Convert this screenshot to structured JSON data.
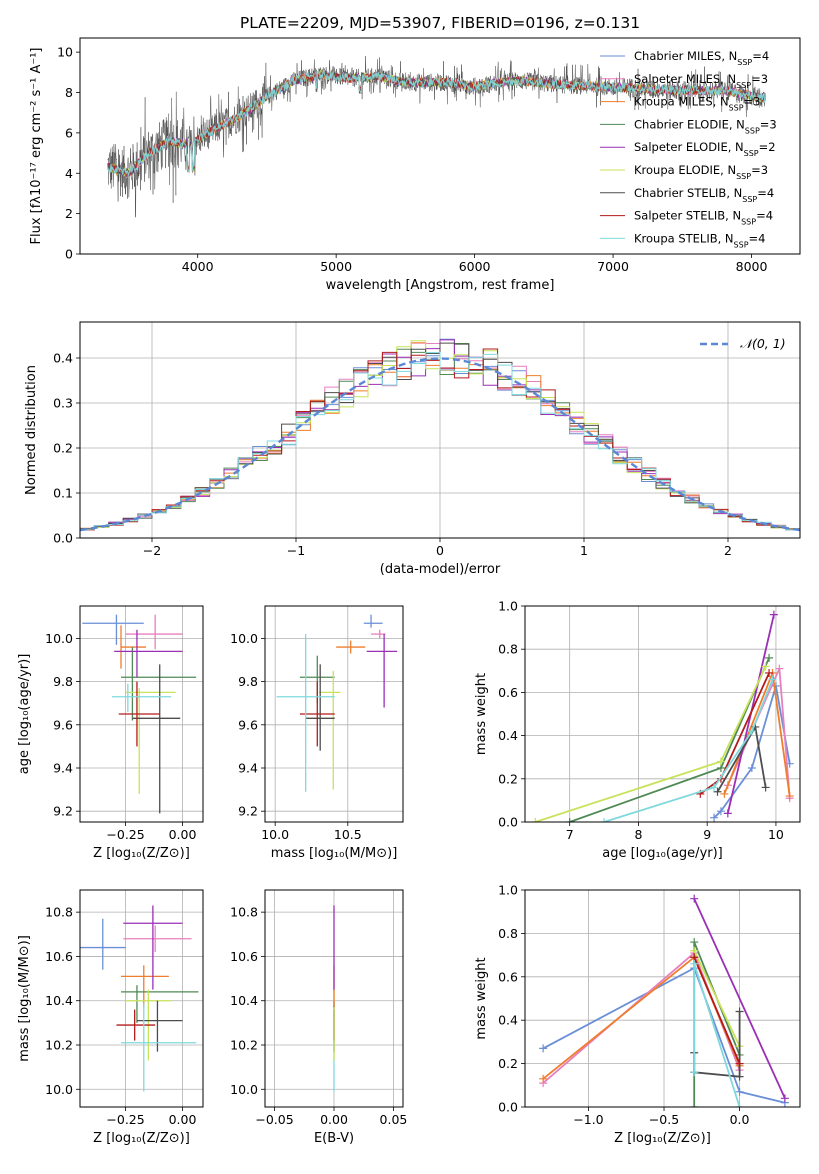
{
  "figure_title": "PLATE=2209, MJD=53907, FIBERID=0196, z=0.131",
  "colors": {
    "Chabrier MILES": "#6a8fd6",
    "Salpeter MILES": "#e87fbf",
    "Kroupa MILES": "#ee7e2e",
    "Chabrier ELODIE": "#4f8a55",
    "Salpeter ELODIE": "#9b2fb6",
    "Kroupa ELODIE": "#c8e35a",
    "Chabrier STELIB": "#4d4d4d",
    "Salpeter STELIB": "#b31b1b",
    "Kroupa STELIB": "#7fd9dc"
  },
  "chart_data": [
    {
      "id": "spectrum",
      "type": "line",
      "title": "PLATE=2209, MJD=53907, FIBERID=0196, z=0.131",
      "xlabel": "wavelength [Angstrom, rest frame]",
      "ylabel": "Flux [fλ10⁻¹⁷ erg cm⁻² s⁻¹ A⁻¹]",
      "xlim": [
        3150,
        8350
      ],
      "ylim": [
        0,
        10.7
      ],
      "xticks": [
        4000,
        5000,
        6000,
        7000,
        8000
      ],
      "yticks": [
        0,
        2,
        4,
        6,
        8,
        10
      ],
      "legend": [
        {
          "name": "Chabrier MILES",
          "nssp": "4"
        },
        {
          "name": "Salpeter MILES",
          "nssp": "3"
        },
        {
          "name": "Kroupa MILES",
          "nssp": "3"
        },
        {
          "name": "Chabrier ELODIE",
          "nssp": "3"
        },
        {
          "name": "Salpeter ELODIE",
          "nssp": "2"
        },
        {
          "name": "Kroupa ELODIE",
          "nssp": "3"
        },
        {
          "name": "Chabrier STELIB",
          "nssp": "4"
        },
        {
          "name": "Salpeter STELIB",
          "nssp": "4"
        },
        {
          "name": "Kroupa STELIB",
          "nssp": "4"
        }
      ],
      "legend_placement": "top-right",
      "continuum": {
        "x": [
          3350,
          3500,
          3650,
          3800,
          3950,
          4100,
          4300,
          4500,
          4700,
          4900,
          5100,
          5300,
          5500,
          5800,
          6000,
          6300,
          6600,
          6900,
          7200,
          7500,
          7800,
          8100
        ],
        "y": [
          4.3,
          4.0,
          5.0,
          5.6,
          5.4,
          6.1,
          6.8,
          7.8,
          8.6,
          8.9,
          8.7,
          8.8,
          8.5,
          8.5,
          8.3,
          8.6,
          8.4,
          8.3,
          8.2,
          8.1,
          8.1,
          7.7
        ]
      }
    },
    {
      "id": "residuals",
      "type": "line",
      "xlabel": "(data-model)/error",
      "ylabel": "Normed distribution",
      "xlim": [
        -2.5,
        2.5
      ],
      "ylim": [
        0,
        0.48
      ],
      "xticks": [
        -2,
        -1,
        0,
        1,
        2
      ],
      "yticks": [
        0.0,
        0.1,
        0.2,
        0.3,
        0.4
      ],
      "grid": true,
      "series": [
        {
          "name": "𝒩(0, 1)",
          "mu": 0,
          "sigma": 1
        }
      ],
      "legend_placement": "top-right",
      "hist_bin_width": 0.1
    },
    {
      "id": "age_vs_Z",
      "type": "scatter",
      "xlabel": "Z [log₁₀(Z/Z⊙)]",
      "ylabel": "age  [log₁₀(age/yr)]",
      "xlim": [
        -0.45,
        0.09
      ],
      "ylim": [
        9.15,
        10.15
      ],
      "xticks": [
        -0.25,
        0.0
      ],
      "xticklabels": [
        "−0.25",
        "0.00"
      ],
      "yticks": [
        9.2,
        9.4,
        9.6,
        9.8,
        10.0
      ],
      "grid": true,
      "points": [
        {
          "model": "Chabrier MILES",
          "x": -0.29,
          "xerr": [
            0.15,
            0.12
          ],
          "y": 10.07,
          "yerr": [
            0.1,
            0.04
          ]
        },
        {
          "model": "Salpeter MILES",
          "x": -0.12,
          "xerr": [
            0.13,
            0.12
          ],
          "y": 10.02,
          "yerr": [
            0.07,
            0.09
          ]
        },
        {
          "model": "Kroupa MILES",
          "x": -0.27,
          "xerr": [
            0.0,
            0.11
          ],
          "y": 9.96,
          "yerr": [
            0.1,
            0.1
          ]
        },
        {
          "model": "Chabrier ELODIE",
          "x": -0.22,
          "xerr": [
            0.05,
            0.28
          ],
          "y": 9.82,
          "yerr": [
            0.2,
            0.14
          ]
        },
        {
          "model": "Salpeter ELODIE",
          "x": -0.2,
          "xerr": [
            0.1,
            0.2
          ],
          "y": 9.94,
          "yerr": [
            0.12,
            0.1
          ]
        },
        {
          "model": "Kroupa ELODIE",
          "x": -0.19,
          "xerr": [
            0.06,
            0.16
          ],
          "y": 9.75,
          "yerr": [
            0.47,
            0.02
          ]
        },
        {
          "model": "Chabrier STELIB",
          "x": -0.1,
          "xerr": [
            0.12,
            0.09
          ],
          "y": 9.63,
          "yerr": [
            0.44,
            0.25
          ]
        },
        {
          "model": "Salpeter STELIB",
          "x": -0.2,
          "xerr": [
            0.08,
            0.1
          ],
          "y": 9.65,
          "yerr": [
            0.15,
            0.15
          ]
        },
        {
          "model": "Kroupa STELIB",
          "x": -0.24,
          "xerr": [
            0.07,
            0.19
          ],
          "y": 9.73,
          "yerr": [
            0.07,
            0.06
          ]
        }
      ]
    },
    {
      "id": "age_vs_mass",
      "type": "scatter",
      "xlabel": "mass [log₁₀(M/M⊙)]",
      "xlim": [
        9.93,
        10.88
      ],
      "ylim": [
        9.15,
        10.15
      ],
      "xticks": [
        10.0,
        10.5
      ],
      "xticklabels": [
        "10.0",
        "10.5"
      ],
      "yticks": [
        9.2,
        9.4,
        9.6,
        9.8,
        10.0
      ],
      "grid": true,
      "points": [
        {
          "model": "Chabrier MILES",
          "x": 10.66,
          "xerr": [
            0.05,
            0.08
          ],
          "y": 10.07,
          "yerr": [
            0.02,
            0.04
          ]
        },
        {
          "model": "Salpeter MILES",
          "x": 10.72,
          "xerr": [
            0.06,
            0.04
          ],
          "y": 10.02,
          "yerr": [
            0.02,
            0.02
          ]
        },
        {
          "model": "Kroupa MILES",
          "x": 10.52,
          "xerr": [
            0.1,
            0.1
          ],
          "y": 9.96,
          "yerr": [
            0.03,
            0.03
          ]
        },
        {
          "model": "Chabrier ELODIE",
          "x": 10.29,
          "xerr": [
            0.12,
            0.12
          ],
          "y": 9.82,
          "yerr": [
            0.12,
            0.1
          ]
        },
        {
          "model": "Salpeter ELODIE",
          "x": 10.75,
          "xerr": [
            0.12,
            0.09
          ],
          "y": 9.94,
          "yerr": [
            0.26,
            0.08
          ]
        },
        {
          "model": "Kroupa ELODIE",
          "x": 10.4,
          "xerr": [
            0.1,
            0.05
          ],
          "y": 9.75,
          "yerr": [
            0.45,
            0.1
          ]
        },
        {
          "model": "Chabrier STELIB",
          "x": 10.31,
          "xerr": [
            0.1,
            0.1
          ],
          "y": 9.63,
          "yerr": [
            0.15,
            0.25
          ]
        },
        {
          "model": "Salpeter STELIB",
          "x": 10.29,
          "xerr": [
            0.12,
            0.12
          ],
          "y": 9.65,
          "yerr": [
            0.15,
            0.15
          ]
        },
        {
          "model": "Kroupa STELIB",
          "x": 10.21,
          "xerr": [
            0.2,
            0.2
          ],
          "y": 9.73,
          "yerr": [
            0.44,
            0.29
          ]
        }
      ]
    },
    {
      "id": "weight_vs_age",
      "type": "line",
      "xlabel": "age  [log₁₀(age/yr)]",
      "ylabel": "mass weight",
      "xlim": [
        6.35,
        10.35
      ],
      "ylim": [
        0.0,
        1.0
      ],
      "xticks": [
        7,
        8,
        9,
        10
      ],
      "yticks": [
        0.0,
        0.2,
        0.4,
        0.6,
        0.8,
        1.0
      ],
      "grid": true,
      "series": [
        {
          "model": "Chabrier MILES",
          "x": [
            9.1,
            9.2,
            9.65,
            10.0,
            10.2
          ],
          "y": [
            0.02,
            0.05,
            0.25,
            0.63,
            0.27
          ]
        },
        {
          "model": "Salpeter MILES",
          "x": [
            9.3,
            10.05,
            10.2
          ],
          "y": [
            0.17,
            0.71,
            0.11
          ]
        },
        {
          "model": "Kroupa MILES",
          "x": [
            9.25,
            9.95,
            10.2
          ],
          "y": [
            0.13,
            0.69,
            0.12
          ]
        },
        {
          "model": "Chabrier ELODIE",
          "x": [
            7.0,
            9.2,
            9.9
          ],
          "y": [
            0.0,
            0.25,
            0.76
          ]
        },
        {
          "model": "Salpeter ELODIE",
          "x": [
            9.3,
            9.97
          ],
          "y": [
            0.04,
            0.96
          ]
        },
        {
          "model": "Kroupa ELODIE",
          "x": [
            6.5,
            9.2,
            9.85
          ],
          "y": [
            0.0,
            0.28,
            0.72
          ]
        },
        {
          "model": "Chabrier STELIB",
          "x": [
            9.15,
            9.7,
            9.85
          ],
          "y": [
            0.14,
            0.44,
            0.16
          ]
        },
        {
          "model": "Salpeter STELIB",
          "x": [
            8.9,
            9.2,
            9.9
          ],
          "y": [
            0.13,
            0.2,
            0.69
          ]
        },
        {
          "model": "Kroupa STELIB",
          "x": [
            7.5,
            9.1,
            9.65,
            9.95
          ],
          "y": [
            0.0,
            0.16,
            0.42,
            0.66
          ]
        }
      ]
    },
    {
      "id": "mass_vs_Z",
      "type": "scatter",
      "xlabel": "Z [log₁₀(Z/Z⊙)]",
      "ylabel": "mass [log₁₀(M/M⊙)]",
      "xlim": [
        -0.45,
        0.09
      ],
      "ylim": [
        9.92,
        10.9
      ],
      "xticks": [
        -0.25,
        0.0
      ],
      "xticklabels": [
        "−0.25",
        "0.00"
      ],
      "yticks": [
        10.0,
        10.2,
        10.4,
        10.6,
        10.8
      ],
      "grid": true,
      "points": [
        {
          "model": "Chabrier MILES",
          "x": -0.35,
          "xerr": [
            0.1,
            0.1
          ],
          "y": 10.64,
          "yerr": [
            0.1,
            0.13
          ]
        },
        {
          "model": "Salpeter MILES",
          "x": -0.12,
          "xerr": [
            0.14,
            0.16
          ],
          "y": 10.68,
          "yerr": [
            0.06,
            0.06
          ]
        },
        {
          "model": "Kroupa MILES",
          "x": -0.17,
          "xerr": [
            0.1,
            0.11
          ],
          "y": 10.51,
          "yerr": [
            0.14,
            0.05
          ]
        },
        {
          "model": "Chabrier ELODIE",
          "x": -0.2,
          "xerr": [
            0.07,
            0.27
          ],
          "y": 10.44,
          "yerr": [
            0.14,
            0.03
          ]
        },
        {
          "model": "Salpeter ELODIE",
          "x": -0.13,
          "xerr": [
            0.13,
            0.13
          ],
          "y": 10.75,
          "yerr": [
            0.3,
            0.08
          ]
        },
        {
          "model": "Kroupa ELODIE",
          "x": -0.15,
          "xerr": [
            0.1,
            0.1
          ],
          "y": 10.4,
          "yerr": [
            0.27,
            0.05
          ]
        },
        {
          "model": "Chabrier STELIB",
          "x": -0.11,
          "xerr": [
            0.09,
            0.11
          ],
          "y": 10.31,
          "yerr": [
            0.14,
            0.09
          ]
        },
        {
          "model": "Salpeter STELIB",
          "x": -0.21,
          "xerr": [
            0.08,
            0.09
          ],
          "y": 10.29,
          "yerr": [
            0.07,
            0.07
          ]
        },
        {
          "model": "Kroupa STELIB",
          "x": -0.17,
          "xerr": [
            0.1,
            0.23
          ],
          "y": 10.21,
          "yerr": [
            0.22,
            0.18
          ]
        }
      ]
    },
    {
      "id": "mass_vs_ebv",
      "type": "scatter",
      "xlabel": "E(B-V)",
      "xlim": [
        -0.058,
        0.058
      ],
      "ylim": [
        9.92,
        10.9
      ],
      "xticks": [
        -0.05,
        0.0,
        0.05
      ],
      "xticklabels": [
        "−0.05",
        "0.00",
        "0.05"
      ],
      "yticks": [
        10.0,
        10.2,
        10.4,
        10.6,
        10.8
      ],
      "grid": true,
      "points": [
        {
          "model": "Kroupa STELIB",
          "x": 0.0,
          "y": 10.21,
          "yerr": [
            0.22,
            0.18
          ]
        },
        {
          "model": "Chabrier STELIB",
          "x": 0.0,
          "y": 10.31,
          "yerr": [
            0.14,
            0.09
          ]
        },
        {
          "model": "Salpeter STELIB",
          "x": 0.0,
          "y": 10.29,
          "yerr": [
            0.07,
            0.07
          ]
        },
        {
          "model": "Kroupa ELODIE",
          "x": 0.0,
          "y": 10.4,
          "yerr": [
            0.27,
            0.05
          ]
        },
        {
          "model": "Kroupa MILES",
          "x": 0.0,
          "y": 10.51,
          "yerr": [
            0.14,
            0.05
          ]
        },
        {
          "model": "Salpeter ELODIE",
          "x": 0.0,
          "y": 10.75,
          "yerr": [
            0.3,
            0.08
          ]
        }
      ]
    },
    {
      "id": "weight_vs_Z",
      "type": "line",
      "xlabel": "Z [log₁₀(Z/Z⊙)]",
      "ylabel": "mass weight",
      "xlim": [
        -1.42,
        0.4
      ],
      "ylim": [
        0.0,
        1.0
      ],
      "xticks": [
        -1.0,
        -0.5,
        0.0
      ],
      "xticklabels": [
        "−1.0",
        "−0.5",
        "0.0"
      ],
      "yticks": [
        0.0,
        0.2,
        0.4,
        0.6,
        0.8,
        1.0
      ],
      "grid": true,
      "series": [
        {
          "model": "Chabrier MILES",
          "x": [
            -1.3,
            -0.3,
            0.0,
            0.3
          ],
          "y": [
            0.27,
            0.64,
            0.07,
            0.02
          ]
        },
        {
          "model": "Salpeter MILES",
          "x": [
            -1.3,
            -0.3,
            0.0
          ],
          "y": [
            0.11,
            0.71,
            0.17
          ]
        },
        {
          "model": "Kroupa MILES",
          "x": [
            -1.3,
            -0.3,
            0.0
          ],
          "y": [
            0.13,
            0.69,
            0.19
          ]
        },
        {
          "model": "Chabrier ELODIE",
          "x": [
            -0.3,
            -0.3,
            0.0
          ],
          "y": [
            0.0,
            0.76,
            0.24
          ]
        },
        {
          "model": "Salpeter ELODIE",
          "x": [
            -0.3,
            0.3
          ],
          "y": [
            0.96,
            0.04
          ]
        },
        {
          "model": "Kroupa ELODIE",
          "x": [
            -0.3,
            0.0
          ],
          "y": [
            0.72,
            0.28
          ]
        },
        {
          "model": "Chabrier STELIB",
          "x": [
            -0.3,
            -0.3,
            0.0,
            0.0
          ],
          "y": [
            0.25,
            0.16,
            0.14,
            0.44
          ]
        },
        {
          "model": "Salpeter STELIB",
          "x": [
            -0.3,
            0.0
          ],
          "y": [
            0.69,
            0.2
          ]
        },
        {
          "model": "Kroupa STELIB",
          "x": [
            -0.3,
            -0.3,
            0.0
          ],
          "y": [
            0.16,
            0.66,
            0.0
          ]
        }
      ]
    }
  ]
}
